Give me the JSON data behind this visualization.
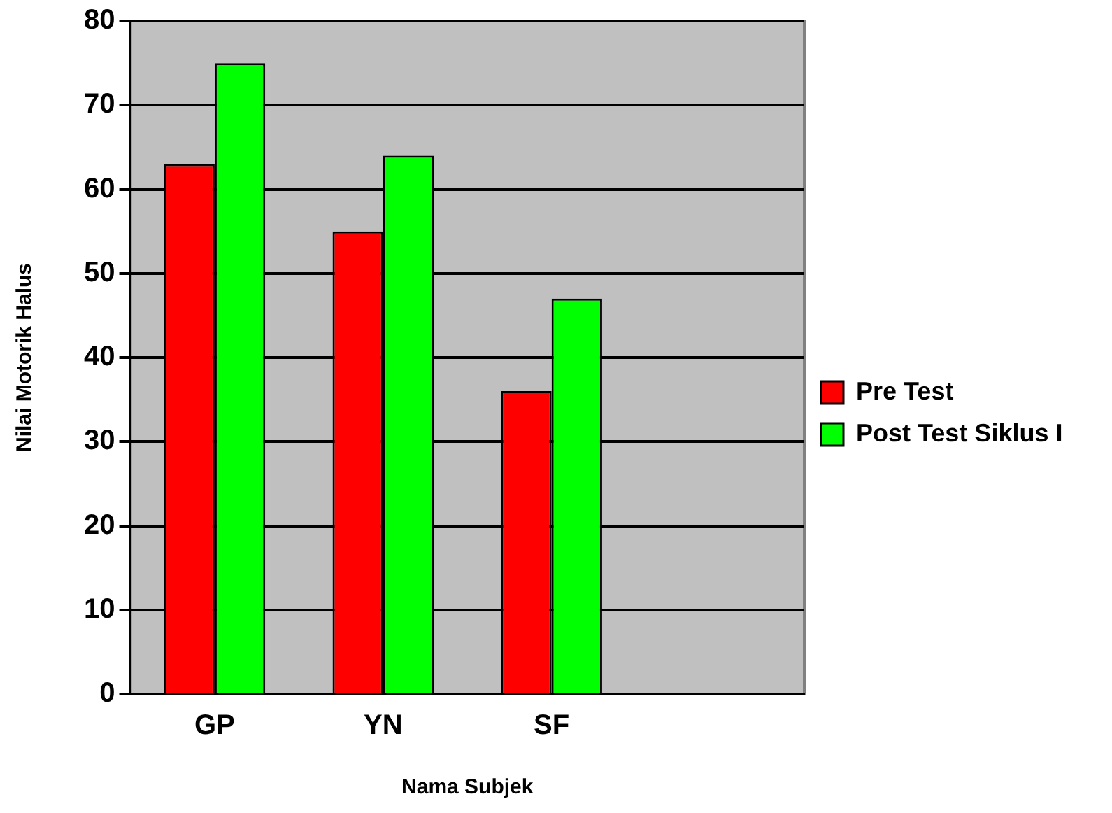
{
  "chart_data": {
    "type": "bar",
    "xlabel": "Nama Subjek",
    "ylabel": "Nilai Motorik Halus",
    "categories": [
      "GP",
      "YN",
      "SF",
      null
    ],
    "series": [
      {
        "name": "Pre Test",
        "color": "#ff0000",
        "values": [
          63,
          55,
          36,
          null
        ]
      },
      {
        "name": "Post Test Siklus I",
        "color": "#00ff00",
        "values": [
          75,
          64,
          47,
          null
        ]
      }
    ],
    "ylim": [
      0,
      80
    ],
    "yticks": [
      0,
      10,
      20,
      30,
      40,
      50,
      60,
      70,
      80
    ],
    "grid": "y",
    "legend": "right"
  }
}
